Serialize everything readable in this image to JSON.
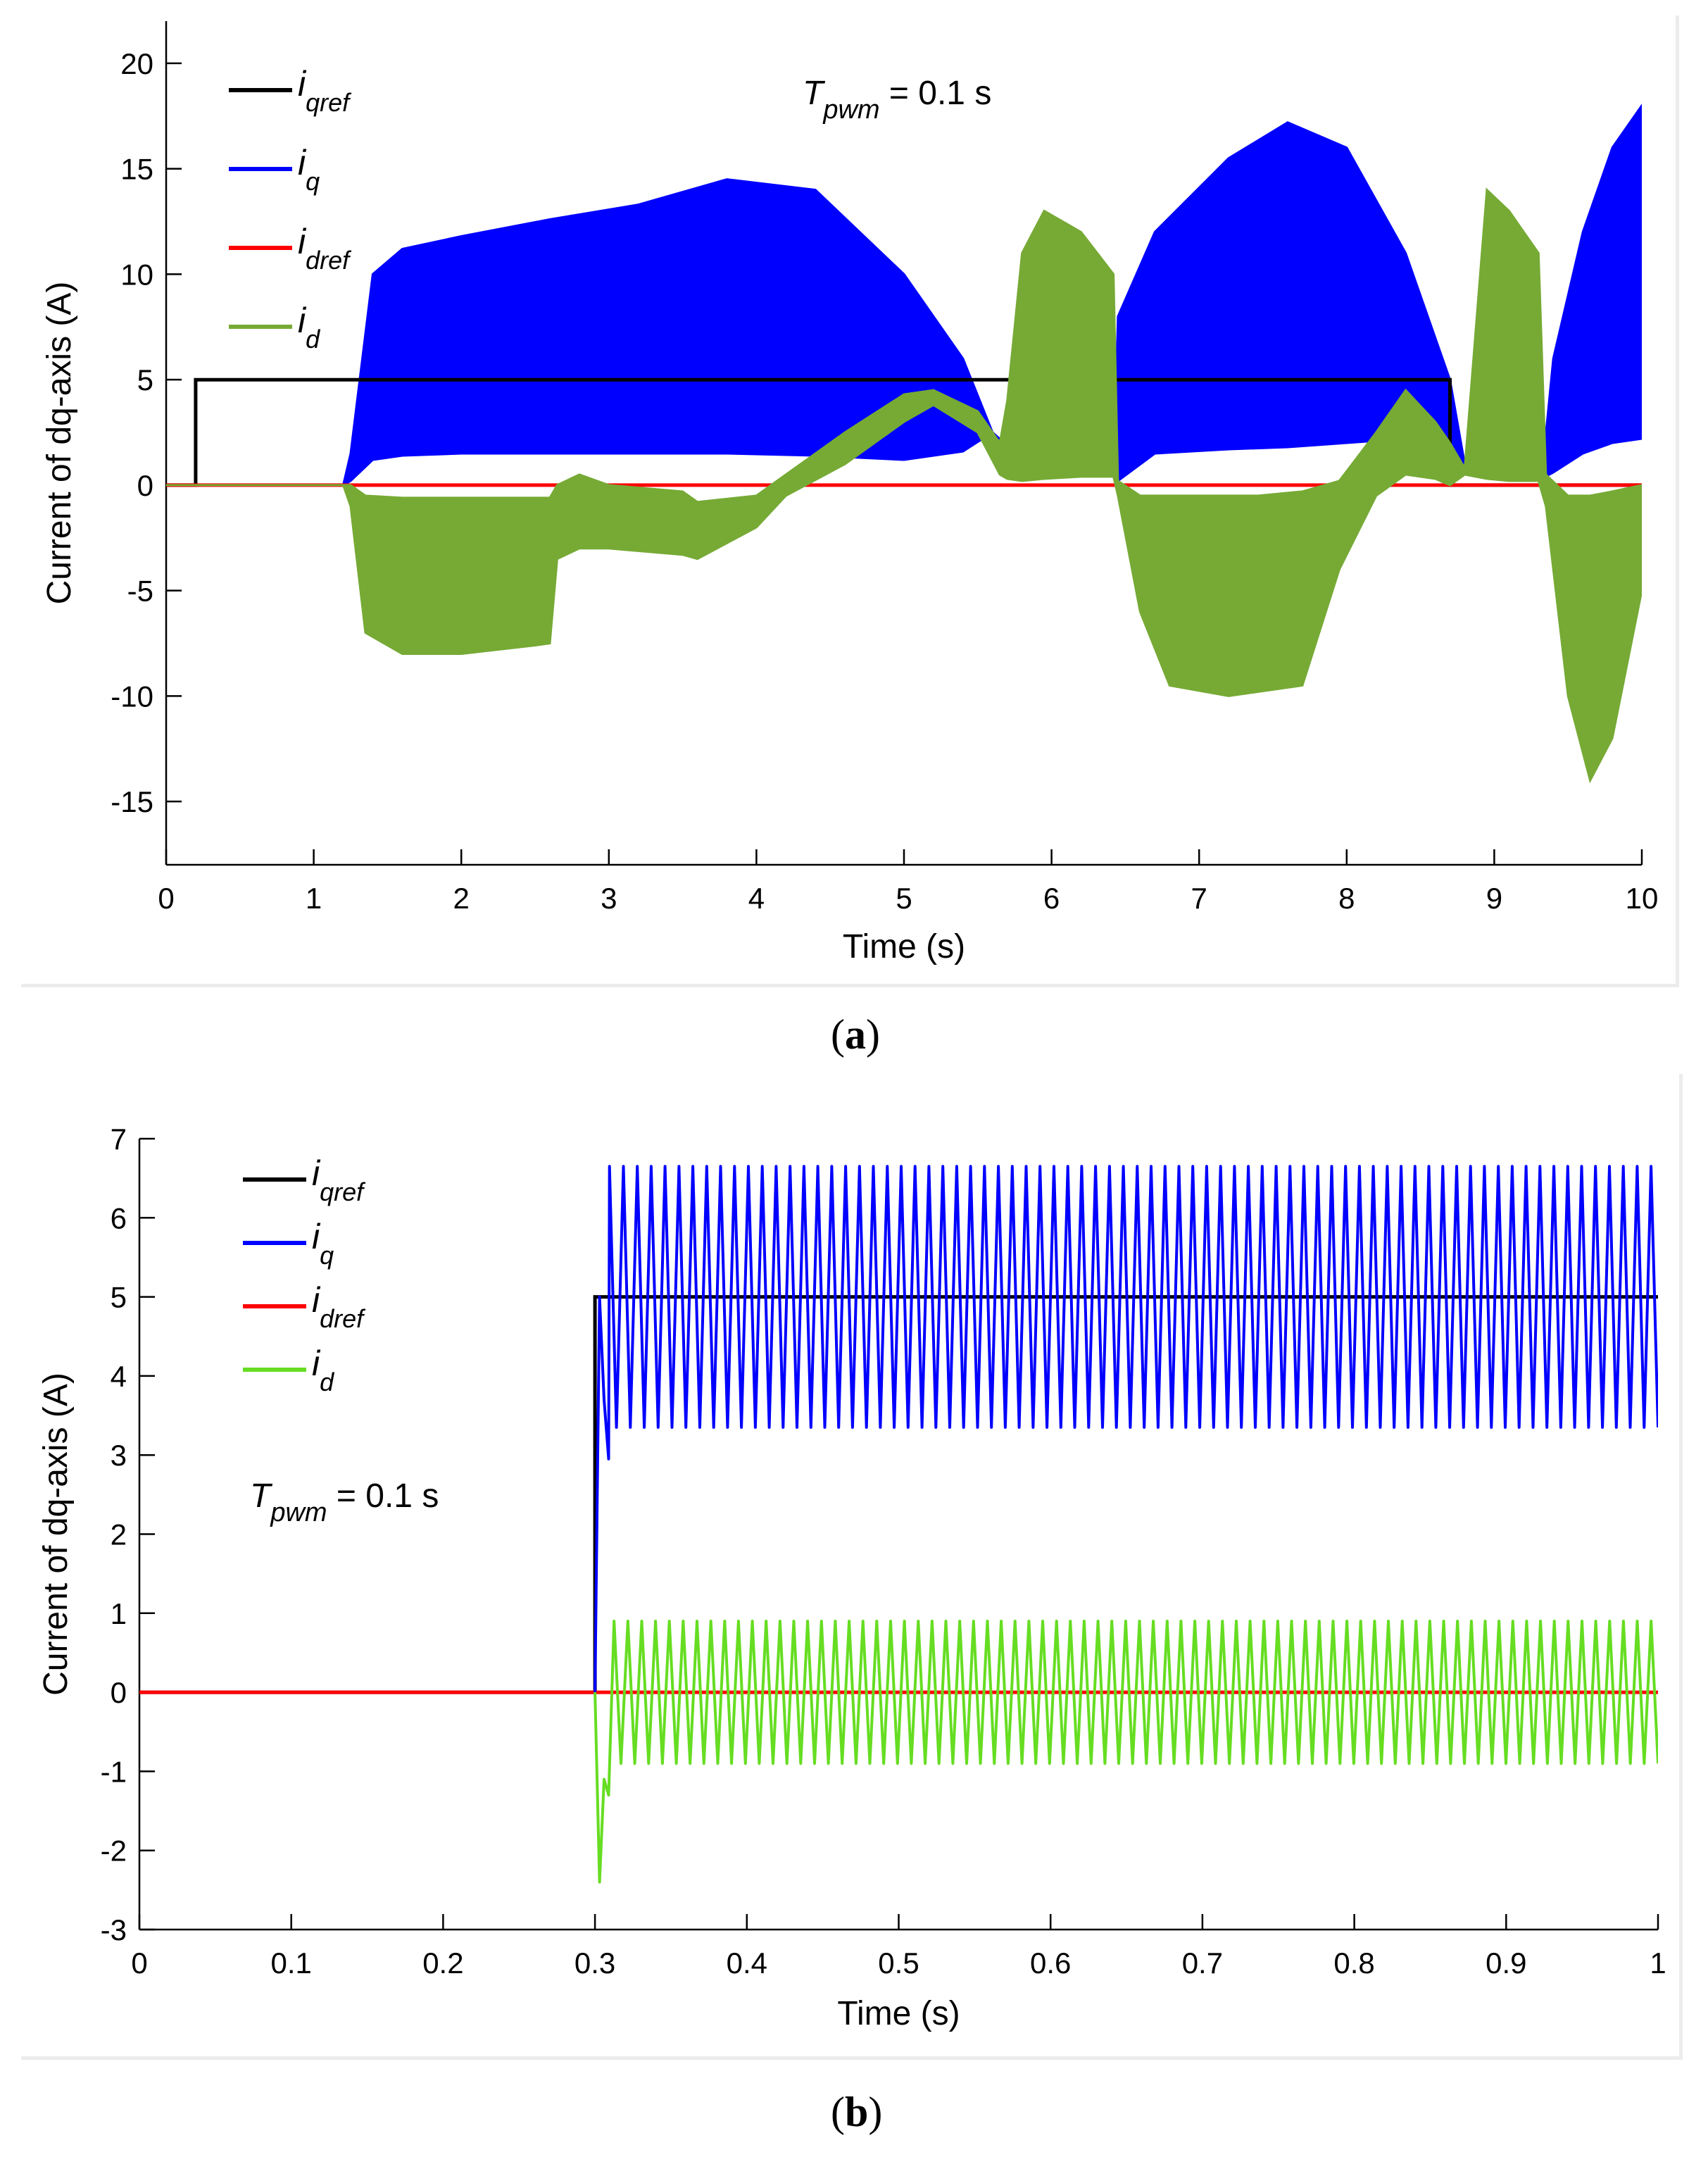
{
  "chart_data": [
    {
      "type": "line",
      "caption": "a",
      "annotation": {
        "base": "T",
        "sub": "pwm",
        "rest": " = 0.1 s"
      },
      "xlabel": "Time (s)",
      "ylabel": "Current of dq-axis (A)",
      "xlim": [
        0,
        10
      ],
      "ylim": [
        -18,
        22
      ],
      "xticks": [
        "0",
        "1",
        "2",
        "3",
        "4",
        "5",
        "6",
        "7",
        "8",
        "9",
        "10"
      ],
      "yticks": [
        "20",
        "15",
        "10",
        "5",
        "0",
        "-5",
        "-10",
        "-15"
      ],
      "legend": [
        {
          "base": "i",
          "sub": "qref",
          "color": "#000000"
        },
        {
          "base": "i",
          "sub": "q",
          "color": "#0000ff"
        },
        {
          "base": "i",
          "sub": "dref",
          "color": "#ff0000"
        },
        {
          "base": "i",
          "sub": "d",
          "color": "#76aa35"
        }
      ],
      "series": [
        {
          "name": "iqref",
          "color": "#000000",
          "x": [
            0,
            0.2,
            0.2,
            8.7,
            8.7,
            10
          ],
          "y": [
            0,
            0,
            5,
            5,
            0,
            0
          ]
        },
        {
          "name": "idref",
          "color": "#ff0000",
          "x": [
            0,
            10
          ],
          "y": [
            0,
            0
          ]
        },
        {
          "name": "iq",
          "color": "#0000ff",
          "band": true,
          "x": [
            0,
            1.2,
            1.25,
            1.4,
            1.6,
            2.0,
            2.6,
            3.2,
            3.8,
            4.4,
            5.0,
            5.4,
            5.6,
            5.9,
            6.3,
            6.42,
            6.45,
            6.7,
            7.2,
            7.6,
            8.0,
            8.4,
            8.7,
            8.8,
            9.2,
            9.32,
            9.4,
            9.6,
            9.8,
            10.0
          ],
          "upper": [
            0,
            0,
            1.5,
            10.0,
            11.2,
            11.8,
            12.6,
            13.3,
            14.5,
            14.0,
            10.0,
            6.0,
            2.5,
            0.6,
            0.5,
            0.4,
            8.0,
            12.0,
            15.5,
            17.2,
            16.0,
            11.0,
            5.0,
            1.0,
            0.5,
            0.3,
            6.0,
            12.0,
            16.0,
            18.0
          ],
          "lower": [
            0,
            0,
            0.2,
            1.2,
            1.4,
            1.5,
            1.5,
            1.5,
            1.5,
            1.4,
            1.2,
            1.6,
            2.5,
            0.6,
            0.5,
            0.4,
            0.2,
            1.5,
            1.7,
            1.8,
            2.0,
            2.2,
            1.5,
            0.8,
            0.5,
            0.3,
            0.6,
            1.5,
            2.0,
            2.2
          ]
        },
        {
          "name": "id",
          "color": "#76aa35",
          "band": true,
          "x": [
            0,
            1.2,
            1.25,
            1.35,
            1.6,
            2.0,
            2.5,
            2.6,
            2.65,
            2.8,
            3.0,
            3.5,
            3.6,
            4.0,
            4.2,
            4.6,
            5.0,
            5.2,
            5.5,
            5.65,
            5.7,
            5.8,
            5.95,
            6.2,
            6.42,
            6.45,
            6.6,
            6.8,
            7.2,
            7.4,
            7.7,
            7.95,
            8.2,
            8.4,
            8.6,
            8.7,
            8.8,
            8.95,
            9.1,
            9.3,
            9.35,
            9.5,
            9.65,
            9.8,
            10.0
          ],
          "upper": [
            0,
            0,
            0,
            -0.5,
            -0.6,
            -0.6,
            -0.6,
            -0.6,
            0,
            0.5,
            0,
            -0.3,
            -0.8,
            -0.5,
            0.5,
            2.5,
            4.3,
            4.5,
            3.5,
            2.0,
            4.0,
            11.0,
            13.0,
            12.0,
            10.0,
            0.2,
            -0.5,
            -0.5,
            -0.5,
            -0.5,
            -0.3,
            0.2,
            2.5,
            4.5,
            3.0,
            2.0,
            0.8,
            14.0,
            13.0,
            11.0,
            0.5,
            -0.5,
            -0.5,
            -0.3,
            0.0
          ],
          "lower": [
            0,
            0,
            -1.0,
            -7.0,
            -8.0,
            -8.0,
            -7.6,
            -7.5,
            -3.5,
            -3.0,
            -3.0,
            -3.3,
            -3.5,
            -2.0,
            -0.5,
            1.0,
            3.0,
            3.8,
            2.5,
            0.5,
            0.3,
            0.2,
            0.3,
            0.4,
            0.4,
            -0.5,
            -6.0,
            -9.5,
            -10.0,
            -9.8,
            -9.5,
            -4.0,
            -0.5,
            0.5,
            0.3,
            0.0,
            0.5,
            0.3,
            0.2,
            0.2,
            -1.0,
            -10.0,
            -14.0,
            -12.0,
            -5.0
          ]
        }
      ]
    },
    {
      "type": "line",
      "caption": "b",
      "annotation": {
        "base": "T",
        "sub": "pwm",
        "rest": " = 0.1 s"
      },
      "xlabel": "Time (s)",
      "ylabel": "Current of dq-axis (A)",
      "xlim": [
        0,
        1
      ],
      "ylim": [
        -3,
        7
      ],
      "xticks": [
        "0",
        "0.1",
        "0.2",
        "0.3",
        "0.4",
        "0.5",
        "0.6",
        "0.7",
        "0.8",
        "0.9",
        "1"
      ],
      "yticks": [
        "7",
        "6",
        "5",
        "4",
        "3",
        "2",
        "1",
        "0",
        "-1",
        "-2",
        "-3"
      ],
      "legend": [
        {
          "base": "i",
          "sub": "qref",
          "color": "#000000"
        },
        {
          "base": "i",
          "sub": "q",
          "color": "#0000ff"
        },
        {
          "base": "i",
          "sub": "dref",
          "color": "#ff0000"
        },
        {
          "base": "i",
          "sub": "d",
          "color": "#66dd22"
        }
      ],
      "series": [
        {
          "name": "iqref",
          "color": "#000000",
          "x": [
            0,
            0.3,
            0.3,
            1.0
          ],
          "y": [
            0,
            0,
            5,
            5
          ]
        },
        {
          "name": "idref",
          "color": "#ff0000",
          "x": [
            0,
            1.0
          ],
          "y": [
            0,
            0
          ]
        },
        {
          "name": "iq",
          "color": "#0000ff",
          "oscillation": {
            "start": 0.305,
            "end": 1.0,
            "cycles": 76,
            "max": 6.65,
            "min": 3.35,
            "startup": [
              [
                0.3,
                0
              ],
              [
                0.303,
                5.0
              ],
              [
                0.306,
                3.7
              ],
              [
                0.309,
                2.95
              ]
            ]
          }
        },
        {
          "name": "id",
          "color": "#66dd22",
          "oscillation": {
            "start": 0.308,
            "end": 1.0,
            "cycles": 76,
            "max": 0.9,
            "min": -0.9,
            "startup": [
              [
                0.3,
                0
              ],
              [
                0.303,
                -2.4
              ],
              [
                0.306,
                -1.1
              ],
              [
                0.309,
                -1.3
              ]
            ]
          }
        }
      ]
    }
  ]
}
